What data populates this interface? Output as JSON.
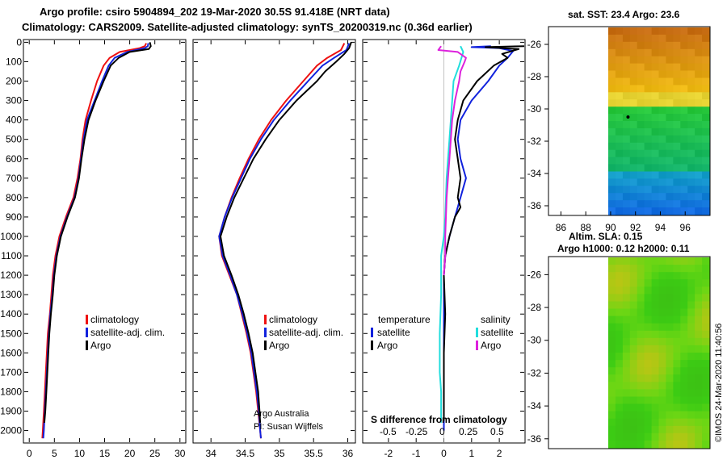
{
  "header": {
    "line1": "Argo profile: csiro 5904894_202 19-Mar-2020 30.5S 91.418E (NRT data)",
    "line2": "Climatology: CARS2009. Satellite-adjusted climatology: synTS_20200319.nc (0.36d earlier)"
  },
  "credits": {
    "argo_aus": "Argo Australia",
    "pi": "PI: Susan Wijffels",
    "imos": "©IMOS 24-Mar-2020 11:40:56"
  },
  "colors": {
    "climatology": "#ee1111",
    "satellite": "#1122dd",
    "argo": "#000000",
    "sal_sat": "#22dddd",
    "sal_argo": "#dd22dd"
  },
  "chart_data": [
    {
      "type": "line",
      "name": "temperature-profile",
      "xlabel": "",
      "ylabel": "",
      "xlim": [
        -1,
        31
      ],
      "ylim": [
        2060,
        -10
      ],
      "x_ticks": [
        0,
        5,
        10,
        15,
        20,
        25,
        30
      ],
      "y_ticks": [
        0,
        100,
        200,
        300,
        400,
        500,
        600,
        700,
        800,
        900,
        1000,
        1100,
        1200,
        1300,
        1400,
        1500,
        1600,
        1700,
        1800,
        1900,
        2000
      ],
      "legend": [
        "climatology",
        "satellite-adj. clim.",
        "Argo"
      ],
      "series": [
        {
          "name": "climatology",
          "color_key": "climatology",
          "points": [
            [
              23.3,
              5
            ],
            [
              23,
              20
            ],
            [
              22,
              30
            ],
            [
              18,
              50
            ],
            [
              16,
              80
            ],
            [
              14.8,
              120
            ],
            [
              13.5,
              200
            ],
            [
              12.3,
              300
            ],
            [
              11.2,
              400
            ],
            [
              10.6,
              500
            ],
            [
              10.2,
              600
            ],
            [
              9.6,
              700
            ],
            [
              8.8,
              800
            ],
            [
              7.3,
              900
            ],
            [
              6,
              1000
            ],
            [
              5.2,
              1100
            ],
            [
              4.7,
              1200
            ],
            [
              4.4,
              1300
            ],
            [
              4.1,
              1400
            ],
            [
              3.7,
              1500
            ],
            [
              3.5,
              1600
            ],
            [
              3.3,
              1700
            ],
            [
              3.1,
              1800
            ],
            [
              2.9,
              1900
            ],
            [
              2.7,
              2000
            ],
            [
              2.6,
              2040
            ]
          ]
        },
        {
          "name": "satellite-adj. clim.",
          "color_key": "satellite",
          "points": [
            [
              23.7,
              5
            ],
            [
              23.6,
              20
            ],
            [
              23,
              30
            ],
            [
              19.5,
              50
            ],
            [
              17,
              80
            ],
            [
              15.8,
              120
            ],
            [
              14.5,
              200
            ],
            [
              13,
              300
            ],
            [
              11.5,
              400
            ],
            [
              10.8,
              500
            ],
            [
              10.3,
              600
            ],
            [
              9.8,
              700
            ],
            [
              9,
              800
            ],
            [
              7.5,
              900
            ],
            [
              6.2,
              1000
            ],
            [
              5.4,
              1100
            ],
            [
              4.9,
              1200
            ],
            [
              4.6,
              1300
            ],
            [
              4.2,
              1400
            ],
            [
              3.9,
              1500
            ],
            [
              3.7,
              1600
            ],
            [
              3.5,
              1700
            ],
            [
              3.3,
              1800
            ],
            [
              3.1,
              1900
            ],
            [
              2.9,
              2000
            ],
            [
              2.8,
              2040
            ]
          ]
        },
        {
          "name": "Argo",
          "color_key": "argo",
          "points": [
            [
              24,
              0
            ],
            [
              24.2,
              20
            ],
            [
              23.8,
              35
            ],
            [
              20,
              50
            ],
            [
              17.8,
              80
            ],
            [
              16.2,
              120
            ],
            [
              14.8,
              200
            ],
            [
              13.2,
              300
            ],
            [
              11.8,
              400
            ],
            [
              11,
              500
            ],
            [
              10.4,
              600
            ],
            [
              9.9,
              700
            ],
            [
              9.1,
              800
            ],
            [
              7.6,
              900
            ],
            [
              6.3,
              1000
            ],
            [
              5.5,
              1100
            ],
            [
              5,
              1200
            ],
            [
              4.7,
              1300
            ],
            [
              4.3,
              1400
            ],
            [
              4,
              1500
            ],
            [
              3.8,
              1600
            ],
            [
              3.6,
              1700
            ],
            [
              3.4,
              1800
            ],
            [
              3.2,
              1900
            ],
            [
              3,
              1960
            ]
          ]
        }
      ]
    },
    {
      "type": "line",
      "name": "salinity-profile",
      "xlabel": "",
      "ylabel": "",
      "xlim": [
        33.75,
        36.1
      ],
      "ylim": [
        2060,
        -10
      ],
      "x_ticks": [
        34,
        34.5,
        35,
        35.5,
        36
      ],
      "x_tick_labels": [
        "34",
        "34.5",
        "35",
        "35.5",
        "36"
      ],
      "legend": [
        "climatology",
        "satellite-adj. clim.",
        "Argo"
      ],
      "series": [
        {
          "name": "climatology",
          "color_key": "climatology",
          "points": [
            [
              35.95,
              5
            ],
            [
              35.9,
              40
            ],
            [
              35.7,
              80
            ],
            [
              35.55,
              120
            ],
            [
              35.35,
              200
            ],
            [
              35.1,
              300
            ],
            [
              34.88,
              400
            ],
            [
              34.7,
              500
            ],
            [
              34.55,
              600
            ],
            [
              34.42,
              700
            ],
            [
              34.3,
              800
            ],
            [
              34.2,
              900
            ],
            [
              34.12,
              1000
            ],
            [
              34.16,
              1100
            ],
            [
              34.27,
              1200
            ],
            [
              34.38,
              1300
            ],
            [
              34.45,
              1400
            ],
            [
              34.52,
              1500
            ],
            [
              34.58,
              1600
            ],
            [
              34.62,
              1700
            ],
            [
              34.66,
              1800
            ],
            [
              34.69,
              1900
            ],
            [
              34.72,
              2000
            ],
            [
              34.73,
              2040
            ]
          ]
        },
        {
          "name": "satellite-adj. clim.",
          "color_key": "satellite",
          "points": [
            [
              36.02,
              5
            ],
            [
              35.98,
              40
            ],
            [
              35.8,
              80
            ],
            [
              35.63,
              120
            ],
            [
              35.42,
              200
            ],
            [
              35.16,
              300
            ],
            [
              34.92,
              400
            ],
            [
              34.73,
              500
            ],
            [
              34.57,
              600
            ],
            [
              34.44,
              700
            ],
            [
              34.31,
              800
            ],
            [
              34.2,
              900
            ],
            [
              34.12,
              1000
            ],
            [
              34.17,
              1100
            ],
            [
              34.28,
              1200
            ],
            [
              34.38,
              1300
            ],
            [
              34.46,
              1400
            ],
            [
              34.53,
              1500
            ],
            [
              34.59,
              1600
            ],
            [
              34.63,
              1700
            ],
            [
              34.67,
              1800
            ],
            [
              34.7,
              1900
            ],
            [
              34.72,
              2000
            ],
            [
              34.73,
              2040
            ]
          ]
        },
        {
          "name": "Argo",
          "color_key": "argo",
          "points": [
            [
              36.05,
              0
            ],
            [
              36.02,
              30
            ],
            [
              35.95,
              60
            ],
            [
              35.83,
              100
            ],
            [
              35.67,
              150
            ],
            [
              35.55,
              200
            ],
            [
              35.25,
              300
            ],
            [
              35,
              400
            ],
            [
              34.8,
              500
            ],
            [
              34.62,
              600
            ],
            [
              34.48,
              700
            ],
            [
              34.34,
              800
            ],
            [
              34.23,
              900
            ],
            [
              34.14,
              1000
            ],
            [
              34.19,
              1100
            ],
            [
              34.3,
              1200
            ],
            [
              34.4,
              1300
            ],
            [
              34.48,
              1400
            ],
            [
              34.55,
              1500
            ],
            [
              34.61,
              1600
            ],
            [
              34.65,
              1700
            ],
            [
              34.69,
              1800
            ],
            [
              34.71,
              1900
            ],
            [
              34.72,
              1960
            ]
          ]
        }
      ]
    },
    {
      "type": "line",
      "name": "difference-profile",
      "xlabel": "S difference from climatology",
      "xlim": [
        -2.9,
        2.9
      ],
      "ylim": [
        2060,
        -10
      ],
      "x_ticks": [
        -2,
        -1,
        0,
        1,
        2
      ],
      "sal_ticks": [
        "-0.5",
        "-0.25",
        "0",
        "0.25",
        "0.5"
      ],
      "legend_temp_title": "temperature",
      "legend_sal_title": "salinity",
      "legend_items": [
        "satellite",
        "Argo",
        "satellite",
        "Argo"
      ],
      "series": [
        {
          "name": "T satellite",
          "color_key": "satellite",
          "points": [
            [
              1.7,
              20
            ],
            [
              1.0,
              25
            ],
            [
              2.0,
              30
            ],
            [
              2.5,
              45
            ],
            [
              2.3,
              80
            ],
            [
              2.0,
              120
            ],
            [
              1.6,
              200
            ],
            [
              1.0,
              300
            ],
            [
              0.6,
              400
            ],
            [
              0.5,
              500
            ],
            [
              0.6,
              600
            ],
            [
              0.8,
              700
            ],
            [
              0.6,
              800
            ],
            [
              0.4,
              900
            ],
            [
              0.2,
              1000
            ],
            [
              0.05,
              1100
            ],
            [
              0,
              1200
            ],
            [
              0,
              1400
            ],
            [
              0,
              1600
            ],
            [
              0,
              2000
            ]
          ]
        },
        {
          "name": "T Argo",
          "color_key": "argo",
          "points": [
            [
              2.9,
              20
            ],
            [
              1.5,
              25
            ],
            [
              2.7,
              35
            ],
            [
              2.1,
              60
            ],
            [
              2.3,
              80
            ],
            [
              1.8,
              120
            ],
            [
              1.2,
              200
            ],
            [
              0.7,
              300
            ],
            [
              0.5,
              400
            ],
            [
              0.4,
              500
            ],
            [
              0.5,
              600
            ],
            [
              0.6,
              700
            ],
            [
              0.5,
              800
            ],
            [
              0.6,
              850
            ],
            [
              0.4,
              900
            ],
            [
              0.3,
              950
            ],
            [
              0.2,
              1000
            ],
            [
              0.05,
              1100
            ],
            [
              0,
              1200
            ],
            [
              0.05,
              1400
            ],
            [
              0,
              1600
            ],
            [
              0,
              1800
            ],
            [
              0,
              1950
            ]
          ]
        },
        {
          "name": "S satellite",
          "color_key": "sal_sat",
          "points": [
            [
              0.6,
              20
            ],
            [
              0.7,
              50
            ],
            [
              0.55,
              120
            ],
            [
              0.35,
              200
            ],
            [
              0.3,
              300
            ],
            [
              0.2,
              500
            ],
            [
              0.1,
              700
            ],
            [
              0.05,
              900
            ],
            [
              0,
              1000
            ],
            [
              -0.1,
              1100
            ],
            [
              -0.1,
              1300
            ],
            [
              -0.15,
              1500
            ],
            [
              -0.15,
              1700
            ],
            [
              -0.1,
              1800
            ],
            [
              -0.1,
              1900
            ],
            [
              -0.1,
              1960
            ]
          ]
        },
        {
          "name": "S Argo",
          "color_key": "sal_argo",
          "points": [
            [
              -0.1,
              20
            ],
            [
              -0.2,
              40
            ],
            [
              0.5,
              50
            ],
            [
              0.8,
              80
            ],
            [
              0.75,
              100
            ],
            [
              0.6,
              150
            ],
            [
              0.55,
              200
            ],
            [
              0.4,
              300
            ],
            [
              0.3,
              400
            ],
            [
              0.2,
              600
            ],
            [
              0.15,
              700
            ],
            [
              0.1,
              800
            ],
            [
              0.05,
              1000
            ],
            [
              0.05,
              1100
            ],
            [
              0,
              1200
            ]
          ]
        }
      ]
    }
  ],
  "maps": {
    "sst": {
      "title": "sat. SST: 23.4 Argo: 23.6",
      "x_ticks": [
        86,
        88,
        90,
        92,
        94,
        96
      ],
      "y_ticks": [
        -26,
        -28,
        -30,
        -32,
        -34,
        -36
      ],
      "marker_lon": 91.4,
      "marker_lat": -30.5
    },
    "sla": {
      "title1": "Altim. SLA: 0.15",
      "title2": "Argo h1000: 0.12 h2000: 0.11",
      "y_ticks": [
        -26,
        -28,
        -30,
        -32,
        -34,
        -36
      ]
    }
  }
}
